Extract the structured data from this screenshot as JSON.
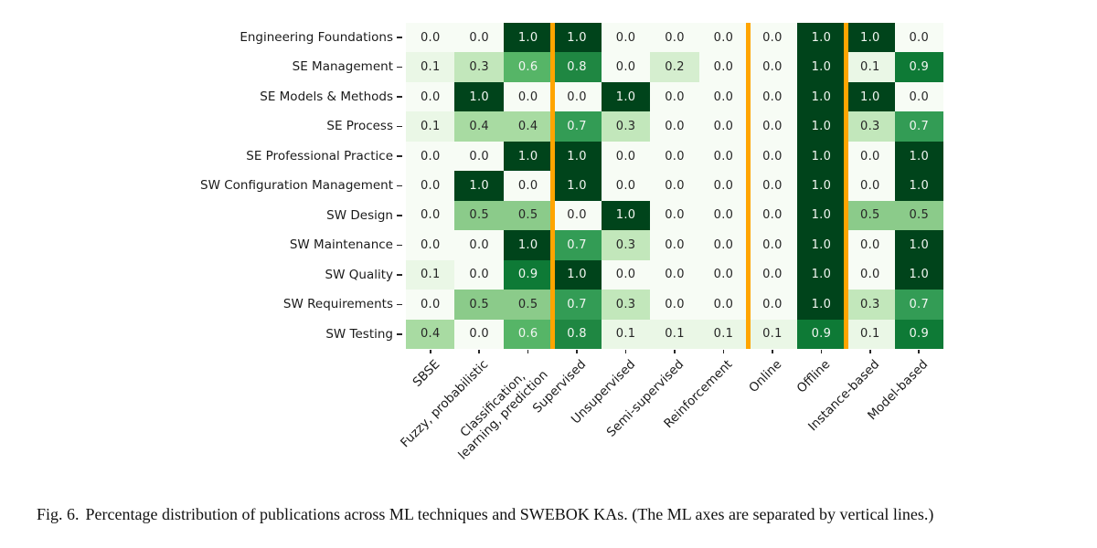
{
  "figure": {
    "caption_label": "Fig. 6.",
    "caption_text": "Percentage distribution of publications across ML techniques and SWEBOK KAs. (The ML axes are separated by vertical lines.)"
  },
  "chart_data": {
    "type": "heatmap",
    "title": "",
    "xlabel": "",
    "ylabel": "",
    "colormap": "Greens",
    "value_range": [
      0,
      1
    ],
    "annotations_shown": true,
    "grid": false,
    "legend": "none",
    "rows": [
      "Engineering Foundations",
      "SE Management",
      "SE Models & Methods",
      "SE Process",
      "SE Professional Practice",
      "SW Configuration Management",
      "SW Design",
      "SW Maintenance",
      "SW Quality",
      "SW Requirements",
      "SW Testing"
    ],
    "columns": [
      "SBSE",
      "Fuzzy, probabilistic",
      "Classification,\nlearning, prediction",
      "Supervised",
      "Unsupervised",
      "Semi-supervised",
      "Reinforcement",
      "Online",
      "Offline",
      "Instance-based",
      "Model-based"
    ],
    "values": [
      [
        0.0,
        0.0,
        1.0,
        1.0,
        0.0,
        0.0,
        0.0,
        0.0,
        1.0,
        1.0,
        0.0
      ],
      [
        0.1,
        0.3,
        0.6,
        0.8,
        0.0,
        0.2,
        0.0,
        0.0,
        1.0,
        0.1,
        0.9
      ],
      [
        0.0,
        1.0,
        0.0,
        0.0,
        1.0,
        0.0,
        0.0,
        0.0,
        1.0,
        1.0,
        0.0
      ],
      [
        0.1,
        0.4,
        0.4,
        0.7,
        0.3,
        0.0,
        0.0,
        0.0,
        1.0,
        0.3,
        0.7
      ],
      [
        0.0,
        0.0,
        1.0,
        1.0,
        0.0,
        0.0,
        0.0,
        0.0,
        1.0,
        0.0,
        1.0
      ],
      [
        0.0,
        1.0,
        0.0,
        1.0,
        0.0,
        0.0,
        0.0,
        0.0,
        1.0,
        0.0,
        1.0
      ],
      [
        0.0,
        0.5,
        0.5,
        0.0,
        1.0,
        0.0,
        0.0,
        0.0,
        1.0,
        0.5,
        0.5
      ],
      [
        0.0,
        0.0,
        1.0,
        0.7,
        0.3,
        0.0,
        0.0,
        0.0,
        1.0,
        0.0,
        1.0
      ],
      [
        0.1,
        0.0,
        0.9,
        1.0,
        0.0,
        0.0,
        0.0,
        0.0,
        1.0,
        0.0,
        1.0
      ],
      [
        0.0,
        0.5,
        0.5,
        0.7,
        0.3,
        0.0,
        0.0,
        0.0,
        1.0,
        0.3,
        0.7
      ],
      [
        0.4,
        0.0,
        0.6,
        0.8,
        0.1,
        0.1,
        0.1,
        0.1,
        0.9,
        0.1,
        0.9
      ]
    ],
    "separators_after_columns": [
      3,
      7,
      9
    ],
    "separator_color": "#ffa500",
    "value_colors": {
      "0.0": "#f7fcf5",
      "0.1": "#eaf7e6",
      "0.2": "#d5eecf",
      "0.3": "#c2e7bb",
      "0.4": "#a8dba2",
      "0.5": "#8bcb8a",
      "0.6": "#56b567",
      "0.7": "#339c55",
      "0.8": "#1f8742",
      "0.9": "#0e7a36",
      "1.0": "#00441b"
    },
    "annotation_dark_text_color": "#262626",
    "annotation_light_text_color": "#f2f6f2",
    "light_text_threshold": 0.6
  }
}
